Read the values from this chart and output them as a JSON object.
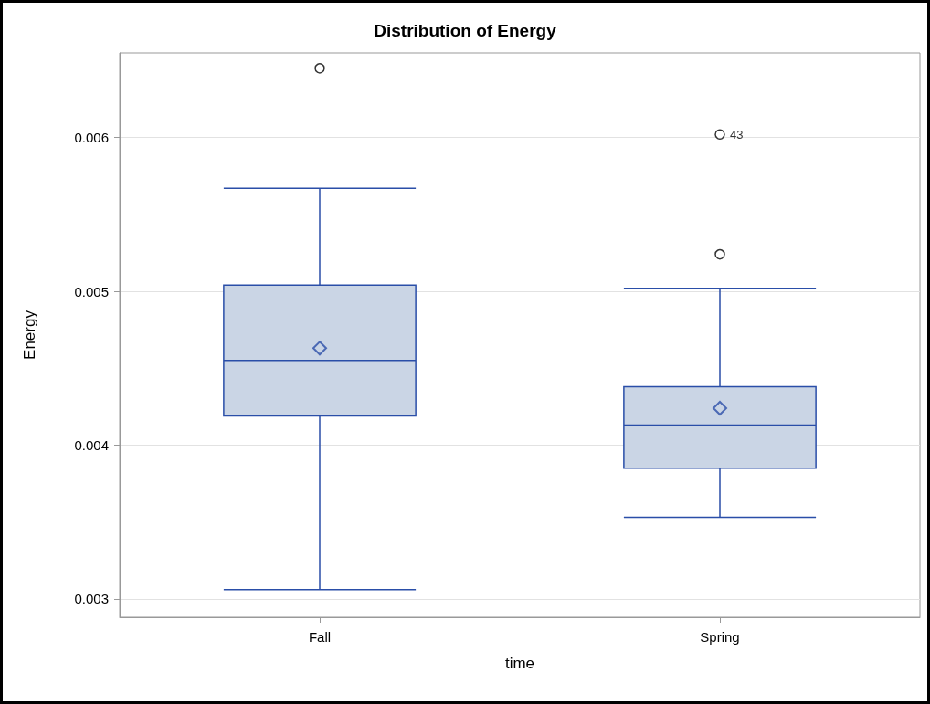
{
  "chart_data": {
    "type": "box",
    "title": "Distribution of Energy",
    "xlabel": "time",
    "ylabel": "Energy",
    "categories": [
      "Fall",
      "Spring"
    ],
    "color": "#cad5e5",
    "boxes": [
      {
        "low": 0.00306,
        "q1": 0.00419,
        "median": 0.00455,
        "q3": 0.00504,
        "high": 0.00567,
        "mean": 0.00463,
        "outliers": [
          0.00645
        ]
      },
      {
        "low": 0.00353,
        "q1": 0.00385,
        "median": 0.00413,
        "q3": 0.00438,
        "high": 0.00502,
        "mean": 0.00424,
        "outliers": [
          0.00602,
          0.00524
        ]
      }
    ],
    "ylim": [
      0.00288,
      0.00655
    ],
    "yticks": [
      0.003,
      0.004,
      0.005,
      0.006
    ],
    "grid": "y",
    "annotations": [
      "43"
    ]
  }
}
